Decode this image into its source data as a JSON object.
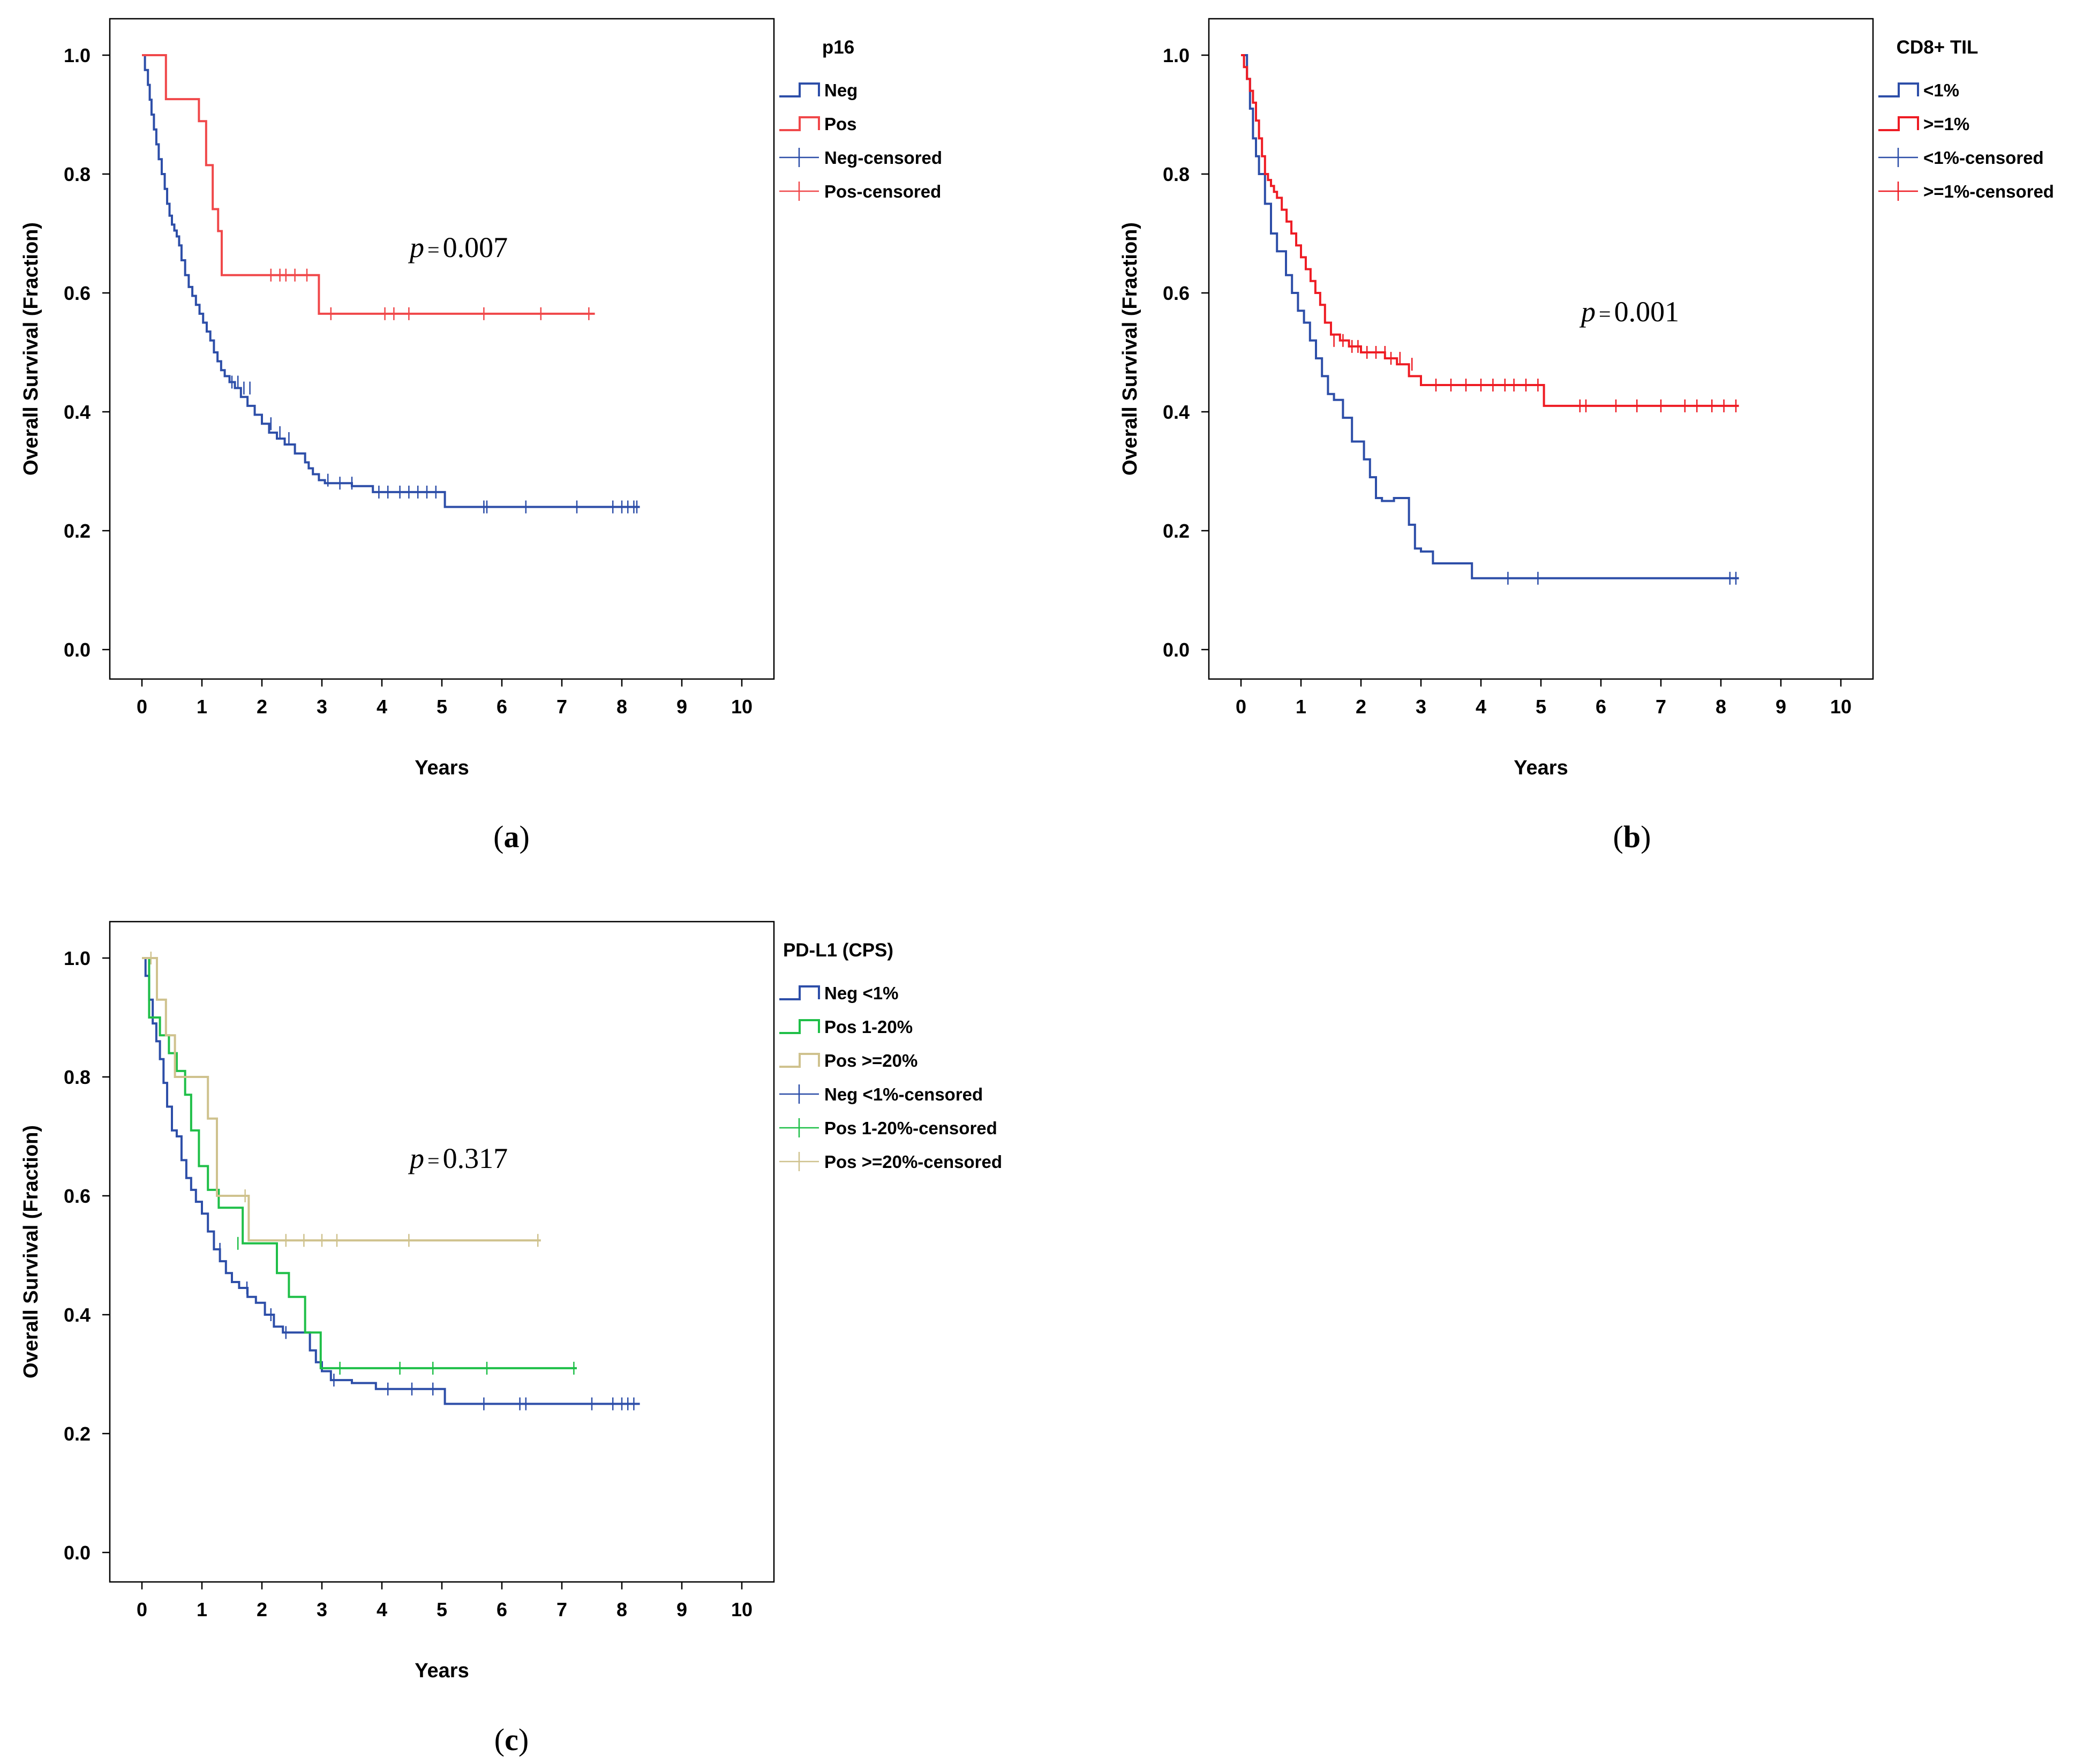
{
  "panels": [
    {
      "id": "a",
      "caption_letter": "a",
      "legend_title": "p16",
      "p_label": "p",
      "p_value": "0.007",
      "chart_data": {
        "type": "line",
        "step": true,
        "xlabel": "Years",
        "ylabel": "Overall Survival (Fraction)",
        "xlim": [
          0,
          10
        ],
        "ylim": [
          0,
          1
        ],
        "xticks": [
          "0",
          "1",
          "2",
          "3",
          "4",
          "5",
          "6",
          "7",
          "8",
          "9",
          "10"
        ],
        "yticks": [
          "0.0",
          "0.2",
          "0.4",
          "0.6",
          "0.8",
          "1.0"
        ],
        "grid": false,
        "legend_position": "right",
        "series": [
          {
            "name": "Neg",
            "censored_name": "Neg-censored",
            "color": "#2d4ea8",
            "x": [
              0,
              0.05,
              0.1,
              0.13,
              0.16,
              0.2,
              0.24,
              0.28,
              0.33,
              0.38,
              0.42,
              0.46,
              0.5,
              0.54,
              0.58,
              0.62,
              0.66,
              0.72,
              0.78,
              0.84,
              0.9,
              0.96,
              1.02,
              1.08,
              1.14,
              1.2,
              1.26,
              1.32,
              1.38,
              1.46,
              1.55,
              1.65,
              1.76,
              1.88,
              2.0,
              2.12,
              2.25,
              2.38,
              2.55,
              2.72,
              2.78,
              2.85,
              2.95,
              3.05,
              3.5,
              3.85,
              5.05,
              8.3
            ],
            "y": [
              1.0,
              0.975,
              0.95,
              0.925,
              0.9,
              0.875,
              0.85,
              0.825,
              0.8,
              0.775,
              0.75,
              0.73,
              0.715,
              0.705,
              0.695,
              0.68,
              0.655,
              0.63,
              0.61,
              0.595,
              0.58,
              0.565,
              0.55,
              0.535,
              0.52,
              0.5,
              0.485,
              0.47,
              0.46,
              0.45,
              0.44,
              0.425,
              0.41,
              0.395,
              0.38,
              0.365,
              0.355,
              0.345,
              0.33,
              0.315,
              0.305,
              0.295,
              0.285,
              0.28,
              0.275,
              0.265,
              0.24,
              0.24
            ],
            "censored_x": [
              1.5,
              1.6,
              1.7,
              1.8,
              2.15,
              2.3,
              2.45,
              3.1,
              3.3,
              3.5,
              3.95,
              4.1,
              4.3,
              4.45,
              4.6,
              4.75,
              4.9,
              5.7,
              5.75,
              6.4,
              7.25,
              7.85,
              8.0,
              8.1,
              8.2,
              8.25
            ],
            "censored_y": [
              0.45,
              0.45,
              0.44,
              0.44,
              0.38,
              0.365,
              0.355,
              0.285,
              0.28,
              0.28,
              0.265,
              0.265,
              0.265,
              0.265,
              0.265,
              0.265,
              0.265,
              0.24,
              0.24,
              0.24,
              0.24,
              0.24,
              0.24,
              0.24,
              0.24,
              0.24
            ]
          },
          {
            "name": "Pos",
            "censored_name": "Pos-censored",
            "color": "#f0484a",
            "x": [
              0,
              0.4,
              0.95,
              1.07,
              1.18,
              1.27,
              1.33,
              2.95,
              7.55
            ],
            "y": [
              1.0,
              0.926,
              0.889,
              0.815,
              0.741,
              0.704,
              0.63,
              0.565,
              0.565
            ],
            "censored_x": [
              2.15,
              2.3,
              2.4,
              2.55,
              2.75,
              3.15,
              4.05,
              4.2,
              4.45,
              5.7,
              6.65,
              7.45
            ],
            "censored_y": [
              0.63,
              0.63,
              0.63,
              0.63,
              0.63,
              0.565,
              0.565,
              0.565,
              0.565,
              0.565,
              0.565,
              0.565
            ]
          }
        ]
      }
    },
    {
      "id": "b",
      "caption_letter": "b",
      "legend_title": "CD8+ TIL",
      "p_label": "p",
      "p_value": "0.001",
      "chart_data": {
        "type": "line",
        "step": true,
        "xlabel": "Years",
        "ylabel": "Overall Survival (Fraction)",
        "xlim": [
          0,
          10
        ],
        "ylim": [
          0,
          1
        ],
        "xticks": [
          "0",
          "1",
          "2",
          "3",
          "4",
          "5",
          "6",
          "7",
          "8",
          "9",
          "10"
        ],
        "yticks": [
          "0.0",
          "0.2",
          "0.4",
          "0.6",
          "0.8",
          "1.0"
        ],
        "grid": false,
        "legend_position": "right",
        "series": [
          {
            "name": "<1%",
            "censored_name": "<1%-censored",
            "color": "#2d4ea8",
            "x": [
              0,
              0.1,
              0.15,
              0.2,
              0.25,
              0.3,
              0.4,
              0.5,
              0.6,
              0.75,
              0.85,
              0.95,
              1.05,
              1.15,
              1.25,
              1.35,
              1.45,
              1.55,
              1.7,
              1.85,
              2.05,
              2.15,
              2.25,
              2.35,
              2.55,
              2.8,
              2.9,
              3.0,
              3.2,
              3.85,
              8.3
            ],
            "y": [
              1.0,
              0.96,
              0.91,
              0.86,
              0.83,
              0.8,
              0.75,
              0.7,
              0.67,
              0.63,
              0.6,
              0.57,
              0.55,
              0.52,
              0.49,
              0.46,
              0.43,
              0.42,
              0.39,
              0.35,
              0.32,
              0.29,
              0.255,
              0.25,
              0.255,
              0.21,
              0.17,
              0.165,
              0.145,
              0.12,
              0.12
            ],
            "censored_x": [
              4.45,
              4.95,
              8.15,
              8.25
            ],
            "censored_y": [
              0.12,
              0.12,
              0.12,
              0.12
            ]
          },
          {
            "name": ">=1%",
            "censored_name": ">=1%-censored",
            "color": "#ee1c24",
            "x": [
              0,
              0.05,
              0.1,
              0.15,
              0.2,
              0.25,
              0.3,
              0.35,
              0.4,
              0.45,
              0.5,
              0.55,
              0.6,
              0.68,
              0.76,
              0.84,
              0.92,
              1.0,
              1.08,
              1.16,
              1.24,
              1.32,
              1.4,
              1.5,
              1.65,
              1.8,
              2.0,
              2.2,
              2.4,
              2.6,
              2.8,
              3.0,
              5.05,
              8.3
            ],
            "y": [
              1.0,
              0.98,
              0.96,
              0.94,
              0.92,
              0.89,
              0.86,
              0.83,
              0.8,
              0.79,
              0.78,
              0.77,
              0.76,
              0.74,
              0.72,
              0.7,
              0.68,
              0.66,
              0.64,
              0.62,
              0.6,
              0.58,
              0.55,
              0.53,
              0.52,
              0.51,
              0.5,
              0.5,
              0.49,
              0.48,
              0.46,
              0.445,
              0.41,
              0.41
            ],
            "censored_x": [
              1.55,
              1.7,
              1.85,
              1.95,
              2.1,
              2.25,
              2.4,
              2.5,
              2.65,
              2.85,
              3.25,
              3.5,
              3.75,
              4.0,
              4.2,
              4.4,
              4.55,
              4.75,
              4.95,
              5.65,
              5.75,
              6.25,
              6.6,
              7.0,
              7.4,
              7.6,
              7.85,
              8.05,
              8.25
            ],
            "censored_y": [
              0.52,
              0.52,
              0.51,
              0.51,
              0.5,
              0.5,
              0.5,
              0.49,
              0.49,
              0.48,
              0.445,
              0.445,
              0.445,
              0.445,
              0.445,
              0.445,
              0.445,
              0.445,
              0.445,
              0.41,
              0.41,
              0.41,
              0.41,
              0.41,
              0.41,
              0.41,
              0.41,
              0.41,
              0.41
            ]
          }
        ]
      }
    },
    {
      "id": "c",
      "caption_letter": "c",
      "legend_title": "PD-L1 (CPS)",
      "p_label": "p",
      "p_value": "0.317",
      "chart_data": {
        "type": "line",
        "step": true,
        "xlabel": "Years",
        "ylabel": "Overall Survival (Fraction)",
        "xlim": [
          0,
          10
        ],
        "ylim": [
          0,
          1
        ],
        "xticks": [
          "0",
          "1",
          "2",
          "3",
          "4",
          "5",
          "6",
          "7",
          "8",
          "9",
          "10"
        ],
        "yticks": [
          "0.0",
          "0.2",
          "0.4",
          "0.6",
          "0.8",
          "1.0"
        ],
        "grid": false,
        "legend_position": "right",
        "series": [
          {
            "name": "Neg <1%",
            "censored_name": "Neg <1%-censored",
            "color": "#2d4ea8",
            "x": [
              0,
              0.06,
              0.12,
              0.18,
              0.24,
              0.3,
              0.36,
              0.42,
              0.5,
              0.58,
              0.66,
              0.74,
              0.82,
              0.9,
              1.0,
              1.1,
              1.2,
              1.3,
              1.4,
              1.5,
              1.62,
              1.76,
              1.9,
              2.05,
              2.2,
              2.35,
              2.55,
              2.8,
              2.9,
              3.0,
              3.15,
              3.5,
              3.9,
              5.05,
              8.3
            ],
            "y": [
              1.0,
              0.97,
              0.93,
              0.89,
              0.86,
              0.83,
              0.79,
              0.75,
              0.71,
              0.7,
              0.66,
              0.63,
              0.61,
              0.59,
              0.57,
              0.54,
              0.51,
              0.49,
              0.47,
              0.455,
              0.445,
              0.43,
              0.42,
              0.4,
              0.38,
              0.37,
              0.37,
              0.34,
              0.32,
              0.305,
              0.29,
              0.285,
              0.275,
              0.25,
              0.25
            ],
            "censored_x": [
              1.3,
              1.75,
              2.15,
              2.4,
              3.2,
              4.1,
              4.5,
              4.85,
              5.7,
              6.3,
              6.4,
              7.5,
              7.85,
              8.0,
              8.1,
              8.2
            ],
            "censored_y": [
              0.51,
              0.445,
              0.4,
              0.37,
              0.29,
              0.275,
              0.275,
              0.275,
              0.25,
              0.25,
              0.25,
              0.25,
              0.25,
              0.25,
              0.25,
              0.25
            ]
          },
          {
            "name": "Pos 1-20%",
            "censored_name": "Pos 1-20%-censored",
            "color": "#1fbf48",
            "x": [
              0,
              0.12,
              0.3,
              0.45,
              0.58,
              0.72,
              0.82,
              0.95,
              1.1,
              1.28,
              1.68,
              2.25,
              2.45,
              2.72,
              2.98,
              7.25
            ],
            "y": [
              1.0,
              0.9,
              0.87,
              0.84,
              0.81,
              0.77,
              0.71,
              0.65,
              0.61,
              0.58,
              0.52,
              0.47,
              0.43,
              0.37,
              0.31,
              0.31
            ],
            "censored_x": [
              1.6,
              3.3,
              4.3,
              4.85,
              5.75,
              7.2
            ],
            "censored_y": [
              0.52,
              0.31,
              0.31,
              0.31,
              0.31,
              0.31
            ]
          },
          {
            "name": "Pos >=20%",
            "censored_name": "Pos >=20%-censored",
            "color": "#cfc28e",
            "x": [
              0,
              0.25,
              0.4,
              0.55,
              1.1,
              1.25,
              1.78,
              6.65
            ],
            "y": [
              1.0,
              0.93,
              0.87,
              0.8,
              0.73,
              0.6,
              0.525,
              0.525
            ],
            "censored_x": [
              0.15,
              1.72,
              2.4,
              2.7,
              3.0,
              3.25,
              4.45,
              6.6
            ],
            "censored_y": [
              1.0,
              0.6,
              0.525,
              0.525,
              0.525,
              0.525,
              0.525,
              0.525
            ]
          }
        ]
      }
    }
  ]
}
